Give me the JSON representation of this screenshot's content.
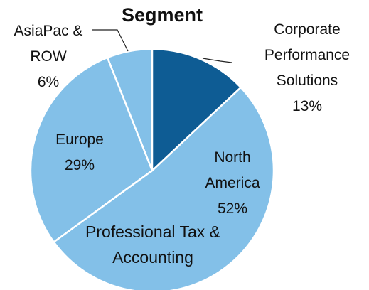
{
  "chart_data": {
    "type": "pie",
    "title": "Segment",
    "categories": [
      "Corporate Performance Solutions",
      "North America",
      "Europe",
      "AsiaPac & ROW"
    ],
    "values": [
      13,
      52,
      29,
      6
    ],
    "value_labels": [
      "13%",
      "52%",
      "29%",
      "6%"
    ],
    "colors": [
      "#0e5c94",
      "#83c0e8",
      "#83c0e8",
      "#83c0e8"
    ],
    "annotations": [
      "Professional Tax & Accounting"
    ]
  }
}
